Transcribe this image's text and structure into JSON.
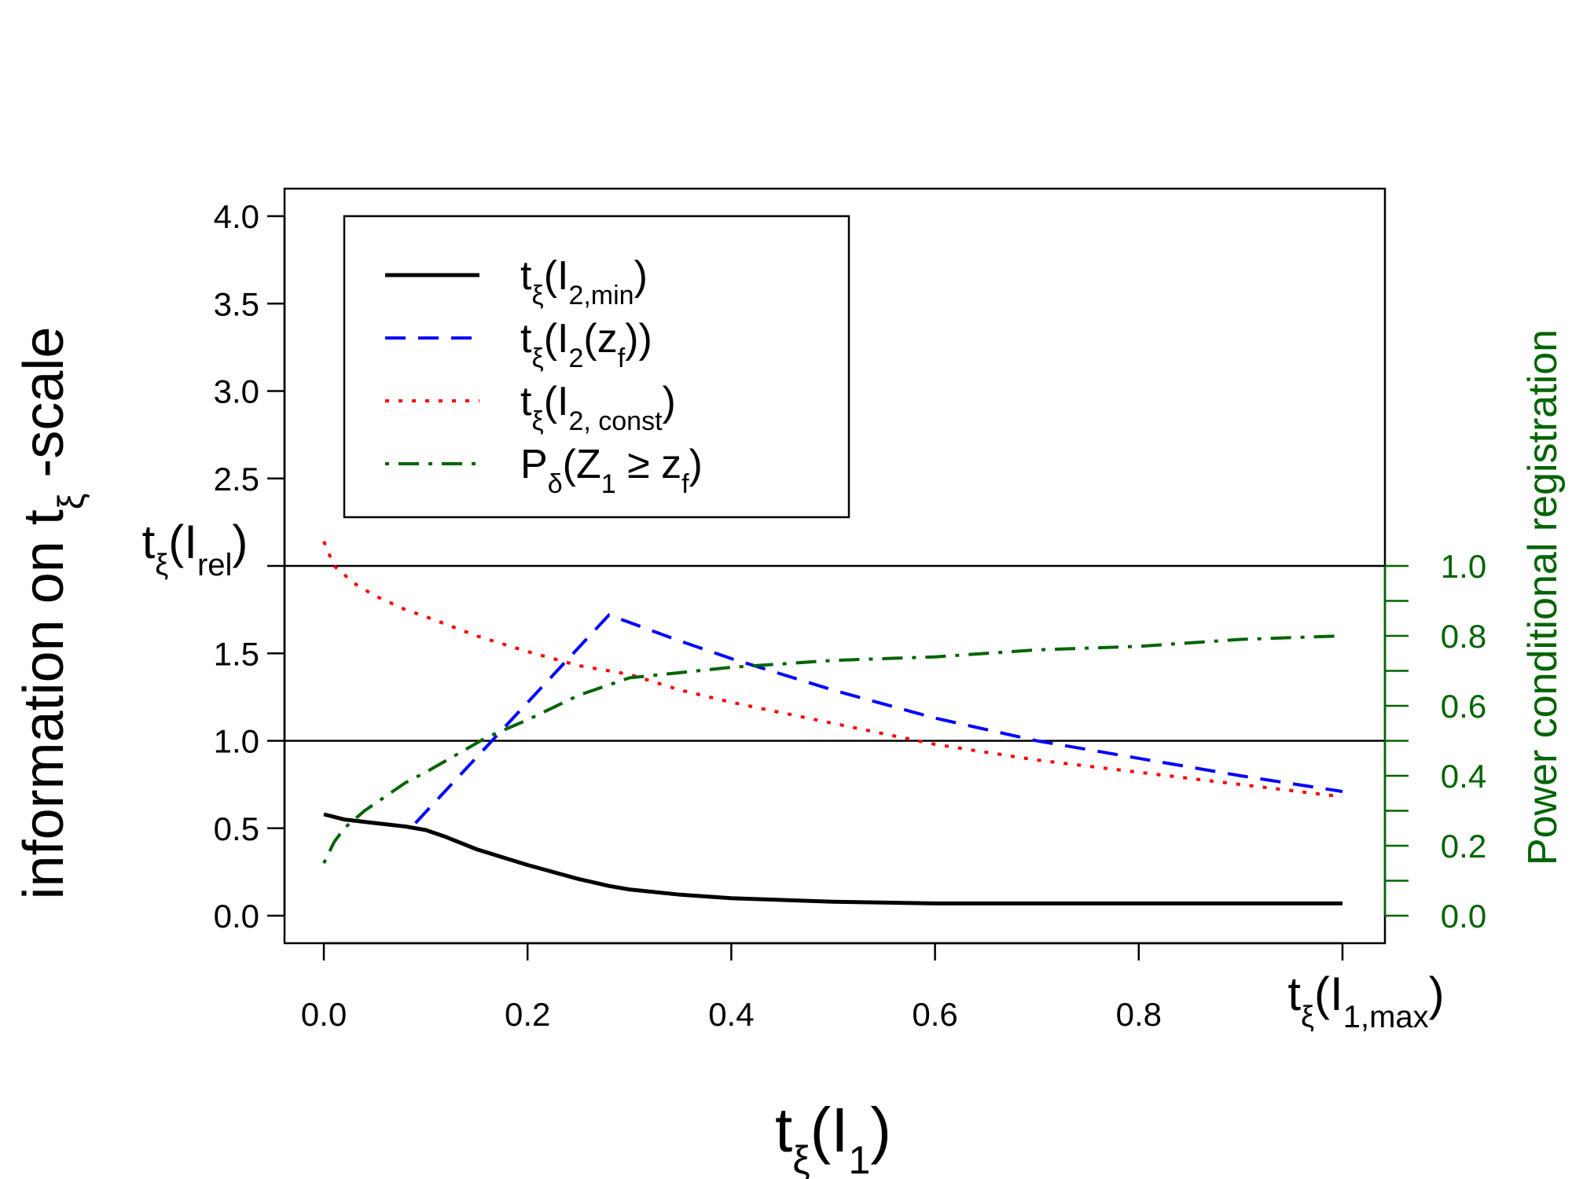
{
  "chart_data": {
    "type": "line",
    "title": "",
    "xlabel": "tξ(I1)",
    "ylabel_left": "information on tξ -scale",
    "ylabel_right": "Power conditional registration",
    "xlim": [
      0,
      1
    ],
    "ylim_left": [
      0,
      4
    ],
    "ylim_right": [
      0,
      1
    ],
    "x_ticks": [
      "0.0",
      "0.2",
      "0.4",
      "0.6",
      "0.8"
    ],
    "x_tick_values": [
      0,
      0.2,
      0.4,
      0.6,
      0.8
    ],
    "x_end_label": "tξ(I1,max)",
    "y_ticks_left": [
      "0.0",
      "0.5",
      "1.0",
      "1.5",
      "2.5",
      "3.0",
      "3.5",
      "4.0"
    ],
    "y_tick_values_left": [
      0,
      0.5,
      1.0,
      1.5,
      2.5,
      3.0,
      3.5,
      4.0
    ],
    "y_special_label": "tξ(Irel)",
    "y_special_value": 2.0,
    "y_ticks_right": [
      "0.0",
      "0.2",
      "0.4",
      "0.6",
      "0.8",
      "1.0"
    ],
    "y_tick_values_right": [
      0,
      0.2,
      0.4,
      0.6,
      0.8,
      1.0
    ],
    "y_minor_ticks_right": [
      0.1,
      0.3,
      0.5,
      0.7,
      0.9
    ],
    "hlines": [
      1.0,
      2.0
    ],
    "legend_position": "top-left",
    "series": [
      {
        "name": "tξ(I2,min)",
        "legend": {
          "base": "t",
          "sub1": "ξ",
          "mid": "(I",
          "sub2": "2,min",
          "end": ")"
        },
        "axis": "left",
        "color": "#000000",
        "dash": "solid",
        "x": [
          0.0,
          0.02,
          0.05,
          0.08,
          0.1,
          0.12,
          0.15,
          0.2,
          0.25,
          0.28,
          0.3,
          0.35,
          0.4,
          0.45,
          0.5,
          0.6,
          0.7,
          0.8,
          0.9,
          1.0
        ],
        "y": [
          0.58,
          0.55,
          0.53,
          0.51,
          0.49,
          0.45,
          0.38,
          0.29,
          0.21,
          0.17,
          0.15,
          0.12,
          0.1,
          0.09,
          0.08,
          0.07,
          0.07,
          0.07,
          0.07,
          0.07
        ]
      },
      {
        "name": "tξ(I2(zf))",
        "legend": {
          "base": "t",
          "sub1": "ξ",
          "mid": "(I",
          "sub2": "2",
          "mid2": "(z",
          "sub3": "f",
          "end": "))"
        },
        "axis": "left",
        "color": "#0000ff",
        "dash": "dashed",
        "x": [
          0.09,
          0.28,
          0.35,
          0.4,
          0.5,
          0.6,
          0.7,
          0.8,
          0.9,
          1.0
        ],
        "y": [
          0.53,
          1.72,
          1.57,
          1.47,
          1.29,
          1.13,
          1.0,
          0.9,
          0.8,
          0.71
        ]
      },
      {
        "name": "tξ(I2, const)",
        "legend": {
          "base": "t",
          "sub1": "ξ",
          "mid": "(I",
          "sub2": "2, const",
          "end": ")"
        },
        "axis": "left",
        "color": "#ff0000",
        "dash": "dotted",
        "x": [
          0.0,
          0.01,
          0.03,
          0.05,
          0.08,
          0.1,
          0.15,
          0.2,
          0.25,
          0.3,
          0.35,
          0.4,
          0.5,
          0.6,
          0.7,
          0.8,
          0.9,
          1.0
        ],
        "y": [
          2.14,
          2.0,
          1.9,
          1.83,
          1.75,
          1.71,
          1.6,
          1.51,
          1.43,
          1.38,
          1.29,
          1.22,
          1.1,
          0.98,
          0.89,
          0.82,
          0.75,
          0.68
        ]
      },
      {
        "name": "Pδ(Z1 ≥ zf)",
        "legend": {
          "base": "P",
          "sub1": "δ",
          "mid": "(Z",
          "sub2": "1",
          "mid2": " ≥ z",
          "sub3": "f",
          "end": ")"
        },
        "axis": "right",
        "color": "#006400",
        "dash": "dotdash",
        "x": [
          0.0,
          0.01,
          0.02,
          0.04,
          0.06,
          0.08,
          0.1,
          0.13,
          0.16,
          0.2,
          0.25,
          0.3,
          0.4,
          0.5,
          0.6,
          0.7,
          0.8,
          0.9,
          1.0
        ],
        "y": [
          0.15,
          0.21,
          0.25,
          0.3,
          0.34,
          0.38,
          0.41,
          0.46,
          0.51,
          0.56,
          0.63,
          0.68,
          0.71,
          0.73,
          0.74,
          0.76,
          0.77,
          0.79,
          0.8
        ]
      }
    ]
  }
}
